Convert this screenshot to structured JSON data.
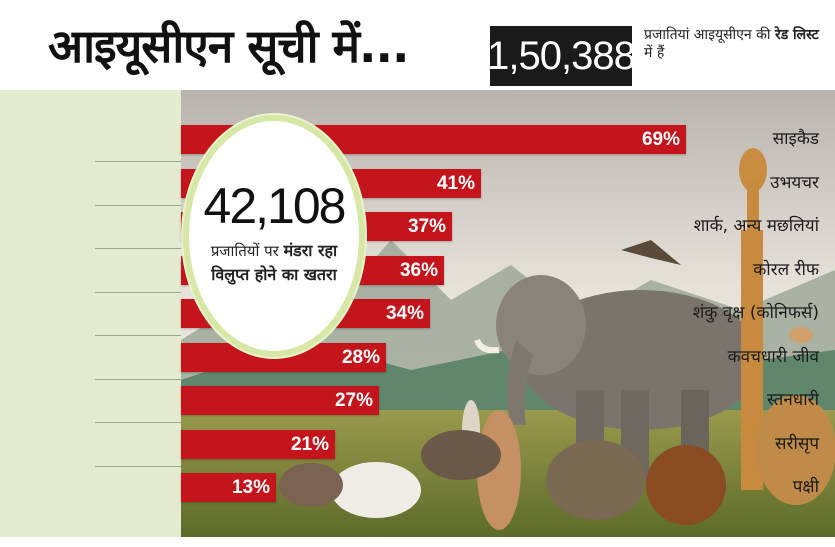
{
  "headline": "आइयूसीएन सूची में...",
  "total_box": {
    "number": "1,50,388",
    "note_prefix": "प्रजातियां आइयूसीएन की",
    "note_bold": "रेड लिस्ट",
    "note_suffix": "में हैं"
  },
  "highlight": {
    "number": "42,108",
    "text_prefix": "प्रजातियों पर",
    "text_bold": "मंडरा रहा विलुप्त होने का खतरा"
  },
  "colors": {
    "bar": "#c4151c",
    "label_panel": "#e3ebd1",
    "circle_border": "#d6e7a6"
  },
  "chart_data": {
    "type": "bar",
    "orientation": "horizontal",
    "categories": [
      "साइकैड",
      "उभयचर",
      "शार्क, अन्य मछलियां",
      "कोरल रीफ",
      "शंकु वृक्ष (कोनिफर्स)",
      "कवचधारी जीव",
      "स्तनधारी",
      "सरीसृप",
      "पक्षी"
    ],
    "values": [
      69,
      41,
      37,
      36,
      34,
      28,
      27,
      21,
      13
    ],
    "value_labels": [
      "69%",
      "41%",
      "37%",
      "36%",
      "34%",
      "28%",
      "27%",
      "21%",
      "13%"
    ],
    "unit": "%",
    "xlim": [
      0,
      100
    ],
    "grid": false
  }
}
